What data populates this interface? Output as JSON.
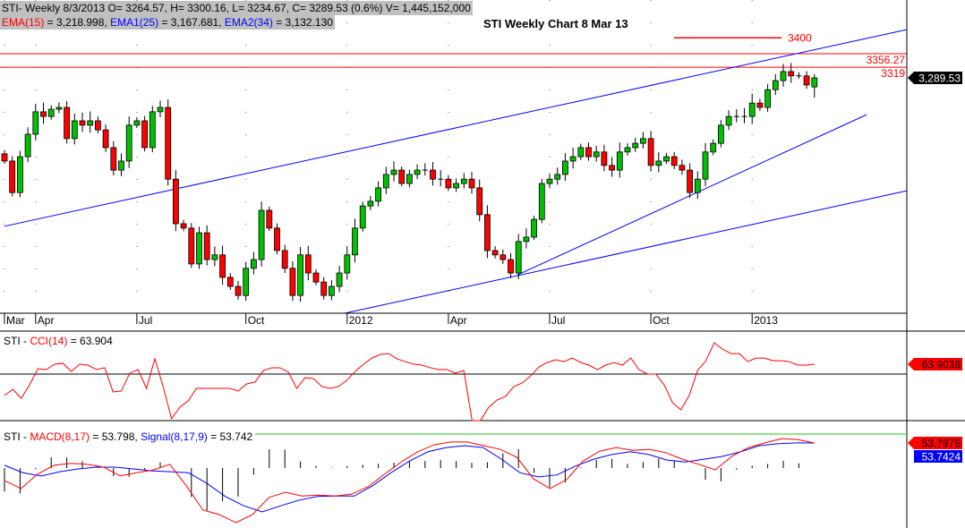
{
  "header": {
    "line1": "STI- Weekly 8/3/2013 O= 3264.57, H= 3300.16, L= 3234.67, C= 3289.53 (0.6%) V= 1,445,152,000",
    "ema15_label": "EMA(15)",
    "ema15_value": " = 3,218.998, ",
    "ema1_label": "EMA1(25)",
    "ema1_value": " = 3,167.681, ",
    "ema2_label": "EMA2(34)",
    "ema2_value": " = 3,132.130"
  },
  "colors": {
    "up": "#00c000",
    "down": "#ff0000",
    "trend": "#0000ff",
    "level": "#ff0000",
    "cci": "#ff0000",
    "macd": "#ff0000",
    "signal": "#0000ff"
  },
  "chart_data": [
    {
      "type": "candlestick",
      "title": "STI Weekly Chart 8 Mar 13",
      "last_candle": {
        "open": 3264.57,
        "high": 3300.16,
        "low": 3234.67,
        "close": 3289.53
      },
      "closes": [
        3060,
        2973,
        3072,
        3134,
        3196,
        3183,
        3203,
        3208,
        3122,
        3171,
        3159,
        3171,
        3146,
        3097,
        3035,
        3060,
        3159,
        3171,
        3097,
        3196,
        3208,
        3010,
        2887,
        2875,
        2776,
        2862,
        2788,
        2801,
        2739,
        2714,
        2689,
        2764,
        2788,
        2924,
        2875,
        2813,
        2764,
        2689,
        2801,
        2751,
        2726,
        2689,
        2714,
        2751,
        2801,
        2875,
        2936,
        2949,
        2986,
        3023,
        3035,
        2998,
        3023,
        3035,
        3035,
        3010,
        3010,
        2986,
        2998,
        3010,
        2986,
        2912,
        2813,
        2801,
        2788,
        2751,
        2838,
        2850,
        2899,
        2998,
        3010,
        3023,
        3060,
        3072,
        3097,
        3072,
        3085,
        3048,
        3035,
        3085,
        3097,
        3109,
        3122,
        3048,
        3060,
        3072,
        3048,
        3035,
        2973,
        3010,
        3085,
        3109,
        3159,
        3183,
        3183,
        3183,
        3220,
        3208,
        3257,
        3282,
        3307,
        3295,
        3295,
        3270,
        3289.53
      ],
      "x_tick_labels": [
        "Mar",
        "Apr",
        "Jul",
        "Oct",
        "2012",
        "Apr",
        "Jul",
        "Oct",
        "2013"
      ],
      "x_tick_weeks": [
        0,
        4,
        17,
        31,
        44,
        57,
        70,
        83,
        96
      ],
      "y_range": [
        2640,
        3504
      ],
      "levels": [
        {
          "value": 3400,
          "label": "3400",
          "short": true
        },
        {
          "value": 3356.27,
          "label": "3356.27",
          "short": false
        },
        {
          "value": 3319,
          "label": "3319",
          "short": false
        }
      ],
      "trendlines": [
        {
          "from": [
            0,
            2880
          ],
          "to": [
            115.9,
            3423
          ]
        },
        {
          "from": [
            43.7,
            2640
          ],
          "to": [
            115.9,
            2978
          ]
        },
        {
          "from": [
            65.9,
            2746
          ],
          "to": [
            110.7,
            3188
          ]
        }
      ],
      "last_price_label": "3,289.53"
    },
    {
      "type": "line",
      "title_prefix": "STI - ",
      "indicator": "CCI(14)",
      "value_text": " = 63.904",
      "last_label": "63.9038",
      "reference": 0,
      "values": [
        -139,
        -99,
        -157,
        -70,
        35,
        29,
        64,
        70,
        17,
        64,
        58,
        29,
        41,
        -116,
        -110,
        6,
        29,
        -93,
        99,
        -81,
        -290,
        -215,
        -174,
        -93,
        -93,
        -93,
        -93,
        -93,
        -110,
        -64,
        -52,
        23,
        41,
        41,
        12,
        -93,
        -23,
        -29,
        -81,
        -93,
        -81,
        -41,
        17,
        64,
        104,
        128,
        133,
        99,
        81,
        64,
        58,
        41,
        29,
        29,
        6,
        23,
        -302,
        -302,
        -215,
        -168,
        -145,
        -81,
        -58,
        -12,
        46,
        75,
        93,
        81,
        104,
        75,
        58,
        29,
        58,
        75,
        58,
        104,
        29,
        0,
        0,
        -70,
        -186,
        -232,
        -139,
        23,
        87,
        203,
        162,
        133,
        133,
        81,
        104,
        104,
        87,
        87,
        81,
        58,
        58,
        63.9
      ]
    },
    {
      "type": "line",
      "title_prefix": "STI - ",
      "macd_label": "MACD(8,17)",
      "macd_value_text": " = 53.798, ",
      "signal_label": "Signal(8,17,9)",
      "signal_value_text": " = 53.742",
      "macd_last_label": "53.7976",
      "signal_last_label": "53.7424",
      "macd": [
        -27,
        -44,
        -13,
        6,
        10,
        8,
        2,
        -17,
        -10,
        -4,
        8,
        -38,
        -90,
        -100,
        -117,
        -100,
        -63,
        -52,
        -60,
        -58,
        -60,
        -56,
        -40,
        -13,
        13,
        35,
        50,
        56,
        56,
        48,
        40,
        23,
        -23,
        -44,
        -25,
        15,
        36,
        44,
        38,
        40,
        33,
        19,
        8,
        -4,
        25,
        44,
        54,
        63,
        61,
        53.8
      ],
      "signal": [
        6,
        -10,
        -17,
        -8,
        -2,
        2,
        2,
        -2,
        -6,
        -8,
        -10,
        -33,
        -61,
        -81,
        -94,
        -81,
        -69,
        -61,
        -60,
        -60,
        -38,
        -10,
        15,
        35,
        44,
        48,
        44,
        19,
        -10,
        -19,
        -15,
        4,
        19,
        29,
        35,
        29,
        17,
        13,
        19,
        25,
        35,
        48,
        52,
        54,
        53.7
      ]
    }
  ]
}
